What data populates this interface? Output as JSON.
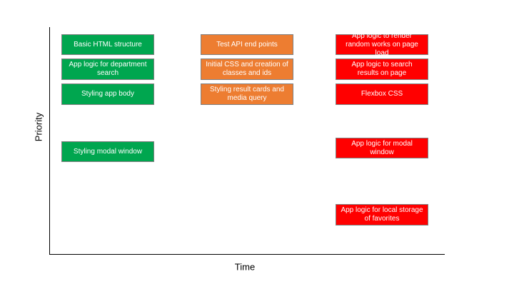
{
  "axes": {
    "y_label": "Priority",
    "x_label": "Time"
  },
  "colors": {
    "green": "#00a64f",
    "orange": "#ed7d31",
    "red": "#ff0000"
  },
  "columns": [
    {
      "color": "green",
      "tasks": [
        {
          "label": "Basic HTML structure"
        },
        {
          "label": "App logic for department search"
        },
        {
          "label": "Styling app body"
        },
        {
          "label": "Styling modal window"
        }
      ]
    },
    {
      "color": "orange",
      "tasks": [
        {
          "label": "Test API end points"
        },
        {
          "label": "Initial CSS and creation of classes and ids"
        },
        {
          "label": "Styling result cards and media query"
        }
      ]
    },
    {
      "color": "red",
      "tasks": [
        {
          "label": "App logic to render random works on page load"
        },
        {
          "label": "App logic to search results on page"
        },
        {
          "label": "Flexbox CSS"
        },
        {
          "label": "App logic for modal window"
        },
        {
          "label": "App logic for local storage of favorites"
        }
      ]
    }
  ]
}
